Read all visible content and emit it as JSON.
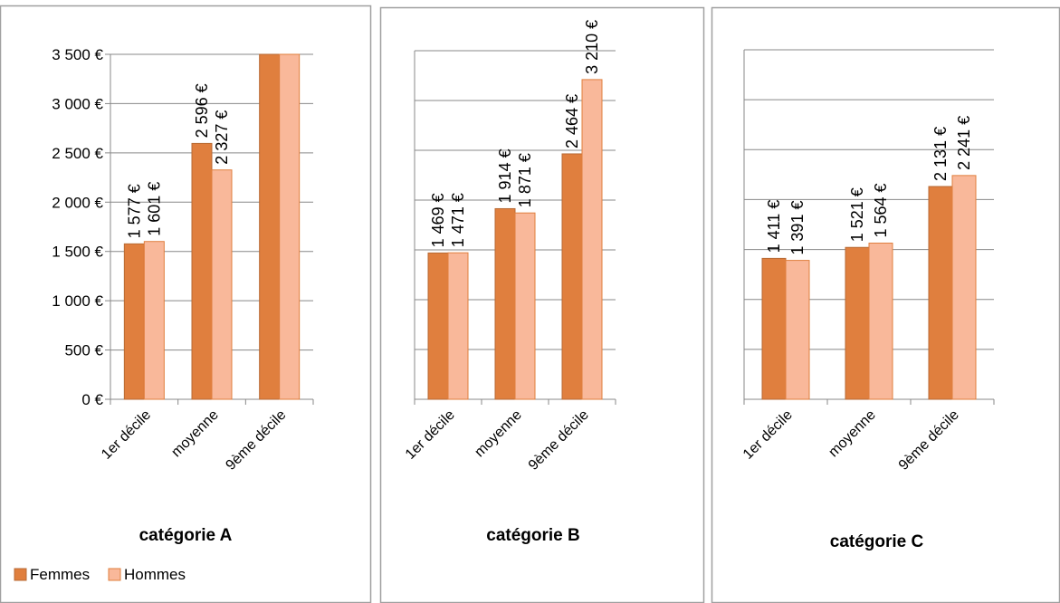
{
  "chart_data": [
    {
      "type": "bar",
      "title": "catégorie  A",
      "categories": [
        "1er décile",
        "moyenne",
        "9ème décile"
      ],
      "series": [
        {
          "name": "Femmes",
          "values": [
            1577,
            2596,
            3500
          ],
          "labels": [
            "1 577 €",
            "2 596 €",
            ""
          ]
        },
        {
          "name": "Hommes",
          "values": [
            1601,
            2327,
            3500
          ],
          "labels": [
            "1 601 €",
            "2 327 €",
            ""
          ]
        }
      ],
      "ylim": [
        0,
        3500
      ],
      "yticks": [
        0,
        500,
        1000,
        1500,
        2000,
        2500,
        3000,
        3500
      ],
      "ytick_labels": [
        "0 €",
        "500 €",
        "1 000 €",
        "1 500 €",
        "2 000 €",
        "2 500 €",
        "3 000 €",
        "3 500 €"
      ],
      "show_legend": true
    },
    {
      "type": "bar",
      "title": "catégorie  B",
      "categories": [
        "1er décile",
        "moyenne",
        "9ème décile"
      ],
      "series": [
        {
          "name": "Femmes",
          "values": [
            1469,
            1914,
            2464
          ],
          "labels": [
            "1 469 €",
            "1 914 €",
            "2 464 €"
          ]
        },
        {
          "name": "Hommes",
          "values": [
            1471,
            1871,
            3210
          ],
          "labels": [
            "1 471 €",
            "1 871 €",
            "3 210 €"
          ]
        }
      ],
      "ylim": [
        0,
        3500
      ],
      "yticks": [
        0,
        500,
        1000,
        1500,
        2000,
        2500,
        3000,
        3500
      ],
      "ytick_labels": [],
      "show_legend": false
    },
    {
      "type": "bar",
      "title": "catégorie  C",
      "categories": [
        "1er décile",
        "moyenne",
        "9ème décile"
      ],
      "series": [
        {
          "name": "Femmes",
          "values": [
            1411,
            1521,
            2131
          ],
          "labels": [
            "1 411 €",
            "1 521 €",
            "2 131 €"
          ]
        },
        {
          "name": "Hommes",
          "values": [
            1391,
            1564,
            2241
          ],
          "labels": [
            "1 391 €",
            "1 564 €",
            "2 241 €"
          ]
        }
      ],
      "ylim": [
        0,
        3500
      ],
      "yticks": [
        0,
        500,
        1000,
        1500,
        2000,
        2500,
        3000,
        3500
      ],
      "ytick_labels": [],
      "show_legend": false
    }
  ],
  "legend": {
    "placement": "bottom-left",
    "entries": [
      {
        "name": "Femmes",
        "color": "#E07F3E"
      },
      {
        "name": "Hommes",
        "color": "#F9B89A"
      }
    ]
  },
  "colors": {
    "femmes_fill": "#E07F3E",
    "femmes_stroke": "#B86A34",
    "hommes_fill": "#F9B89A",
    "hommes_stroke": "#E07F3E",
    "grid": "#888888",
    "panel_border": "#A0A0A0",
    "text": "#000000"
  }
}
